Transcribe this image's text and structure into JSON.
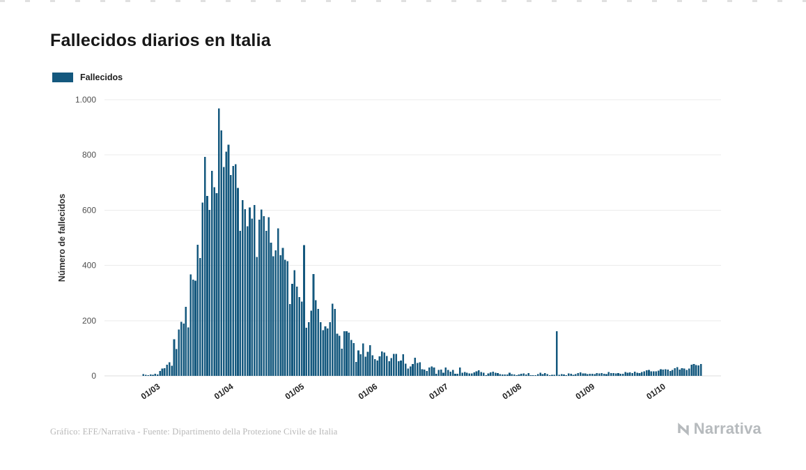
{
  "page": {
    "title": "Fallecidos diarios en Italia",
    "footer_credit": "Gráfico: EFE/Narrativa - Fuente: Dipartimento della Protezione Civile de Italia",
    "brand": "Narrativa"
  },
  "legend": {
    "label": "Fallecidos",
    "color": "#14587E"
  },
  "chart_data": {
    "type": "bar",
    "title": "Fallecidos diarios en Italia",
    "series_name": "Fallecidos",
    "xlabel": "",
    "ylabel": "Número de fallecidos",
    "ylim": [
      0,
      1000
    ],
    "grid": "horizontal",
    "legend_position": "top-left",
    "bar_color": "#14587E",
    "y_ticks": [
      "0",
      "200",
      "400",
      "600",
      "800",
      "1.000"
    ],
    "y_tick_values": [
      0,
      200,
      400,
      600,
      800,
      1000
    ],
    "x_ticks": [
      "01/03",
      "01/04",
      "01/05",
      "01/06",
      "01/07",
      "01/08",
      "01/09",
      "01/10"
    ],
    "x_tick_dates": [
      "2020-03-01",
      "2020-04-01",
      "2020-05-01",
      "2020-06-01",
      "2020-07-01",
      "2020-08-01",
      "2020-09-01",
      "2020-10-01"
    ],
    "start_date": "2020-02-24",
    "values": [
      6,
      4,
      2,
      5,
      4,
      8,
      5,
      18,
      27,
      28,
      41,
      49,
      36,
      133,
      97,
      168,
      196,
      189,
      250,
      175,
      368,
      349,
      345,
      475,
      427,
      627,
      793,
      651,
      601,
      743,
      683,
      662,
      969,
      889,
      756,
      812,
      837,
      727,
      760,
      766,
      681,
      525,
      636,
      604,
      542,
      610,
      570,
      619,
      431,
      566,
      602,
      578,
      525,
      575,
      482,
      433,
      454,
      534,
      437,
      464,
      420,
      415,
      260,
      333,
      382,
      323,
      285,
      269,
      474,
      174,
      195,
      236,
      369,
      274,
      243,
      194,
      165,
      179,
      172,
      195,
      262,
      242,
      153,
      145,
      99,
      162,
      161,
      156,
      130,
      119,
      50,
      92,
      78,
      117,
      70,
      87,
      111,
      75,
      60,
      55,
      71,
      88,
      85,
      72,
      53,
      65,
      79,
      79,
      53,
      56,
      78,
      44,
      26,
      34,
      43,
      66,
      47,
      49,
      24,
      23,
      18,
      30,
      34,
      30,
      8,
      22,
      23,
      12,
      30,
      21,
      15,
      21,
      8,
      8,
      30,
      12,
      14,
      12,
      9,
      9,
      13,
      17,
      20,
      14,
      11,
      3,
      9,
      13,
      15,
      12,
      10,
      6,
      5,
      5,
      5,
      11,
      6,
      5,
      3,
      5,
      8,
      9,
      5,
      10,
      3,
      3,
      2,
      6,
      12,
      6,
      10,
      6,
      3,
      4,
      4,
      162,
      4,
      6,
      5,
      3,
      9,
      7,
      4,
      6,
      10,
      13,
      9,
      9,
      6,
      8,
      8,
      6,
      10,
      9,
      10,
      8,
      6,
      14,
      10,
      10,
      9,
      10,
      7,
      8,
      14,
      12,
      13,
      10,
      15,
      11,
      10,
      14,
      17,
      20,
      21,
      17,
      16,
      16,
      19,
      24,
      23,
      24,
      23,
      18,
      22,
      28,
      32,
      23,
      28,
      26,
      21,
      26,
      41,
      43,
      39,
      38,
      43
    ]
  }
}
